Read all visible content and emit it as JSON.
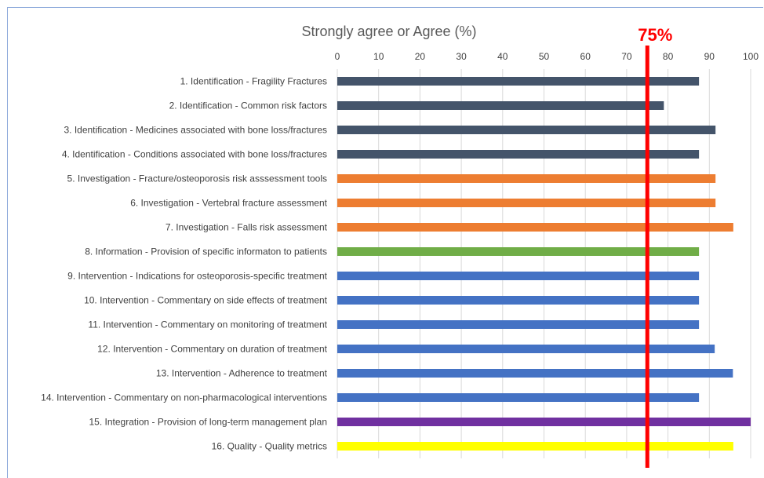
{
  "chart_data": {
    "type": "bar",
    "orientation": "horizontal",
    "title": "Strongly agree or Agree (%)",
    "xlabel": "",
    "ylabel": "",
    "xlim": [
      0,
      100
    ],
    "ticks": [
      0,
      10,
      20,
      30,
      40,
      50,
      60,
      70,
      80,
      90,
      100
    ],
    "grid": true,
    "legend": "none",
    "reference_line": {
      "value": 75,
      "label": "75%",
      "color": "#ff0000"
    },
    "categories": [
      "1. Identification - Fragility Fractures",
      "2. Identification - Common risk factors",
      "3. Identification - Medicines associated with bone loss/fractures",
      "4. Identification - Conditions associated with bone loss/fractures",
      "5. Investigation - Fracture/osteoporosis risk asssessment tools",
      "6. Investigation - Vertebral fracture assessment",
      "7. Investigation - Falls risk assessment",
      "8. Information - Provision of specific informaton to patients",
      "9. Intervention - Indications for osteoporosis-specific treatment",
      "10. Intervention - Commentary on side effects of treatment",
      "11. Intervention - Commentary on monitoring of treatment",
      "12. Intervention - Commentary on duration of treatment",
      "13. Intervention - Adherence to treatment",
      "14. Intervention - Commentary on non-pharmacological interventions",
      "15. Integration - Provision of long-term management plan",
      "16. Quality - Quality metrics"
    ],
    "values": [
      87.5,
      79,
      91.5,
      87.5,
      91.5,
      91.5,
      95.8,
      87.5,
      87.5,
      87.5,
      87.5,
      91.3,
      95.7,
      87.5,
      100,
      95.8
    ],
    "colors": [
      "#44546a",
      "#44546a",
      "#44546a",
      "#44546a",
      "#ed7d31",
      "#ed7d31",
      "#ed7d31",
      "#70ad47",
      "#4472c4",
      "#4472c4",
      "#4472c4",
      "#4472c4",
      "#4472c4",
      "#4472c4",
      "#7030a0",
      "#ffff00"
    ]
  }
}
